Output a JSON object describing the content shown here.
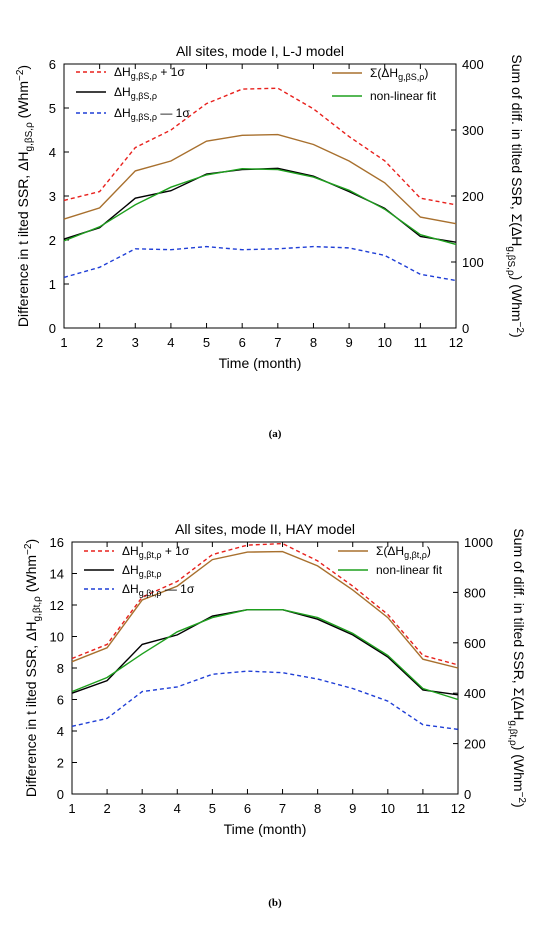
{
  "chart_data": [
    {
      "type": "line",
      "title": "All sites, mode I, L-J model",
      "caption": "(a)",
      "xlabel": "Time (month)",
      "ylabel_left": "Difference in t ilted SSR, ΔH",
      "ylabel_left_sub": "g,βS,ρ",
      "ylabel_left_unit": "(Whm",
      "ylabel_left_sup": "−2",
      "ylabel_left_close": ")",
      "ylabel_right_1": "Sum of diff. in tilted SSR,  Σ(ΔH",
      "ylabel_right_sub": "g,βS,ρ",
      "ylabel_right_unit": ") (Whm",
      "ylabel_right_sup": "−2",
      "ylabel_right_close": ")",
      "x": [
        1,
        2,
        3,
        4,
        5,
        6,
        7,
        8,
        9,
        10,
        11,
        12
      ],
      "xlim": [
        1,
        12
      ],
      "ylim_left": [
        0,
        6
      ],
      "ylim_right": [
        0,
        400
      ],
      "grid": false,
      "series": [
        {
          "name": "ΔH",
          "sub": "g,βS,ρ",
          "suffix": " + 1σ",
          "axis": "left",
          "color": "#e8201c",
          "dash": true,
          "values": [
            2.9,
            3.1,
            4.1,
            4.5,
            5.1,
            5.43,
            5.45,
            4.98,
            4.35,
            3.8,
            2.95,
            2.8
          ]
        },
        {
          "name": "ΔH",
          "sub": "g,βS,ρ",
          "suffix": "",
          "axis": "left",
          "color": "#000000",
          "dash": false,
          "values": [
            2.02,
            2.28,
            2.95,
            3.12,
            3.5,
            3.6,
            3.63,
            3.45,
            3.1,
            2.72,
            2.08,
            1.95
          ]
        },
        {
          "name": "ΔH",
          "sub": "g,βS,ρ",
          "suffix": " — 1σ",
          "axis": "left",
          "color": "#1f3ed6",
          "dash": true,
          "values": [
            1.15,
            1.38,
            1.8,
            1.78,
            1.85,
            1.78,
            1.8,
            1.85,
            1.82,
            1.65,
            1.22,
            1.08
          ]
        },
        {
          "name": "Σ(ΔH",
          "sub": "g,βS,ρ",
          "suffix": ")",
          "axis": "right",
          "color": "#a8702e",
          "dash": false,
          "values": [
            165,
            182,
            238,
            253,
            283,
            292,
            293,
            278,
            253,
            220,
            168,
            158
          ]
        },
        {
          "name": "non-linear fit",
          "sub": "",
          "suffix": "",
          "axis": "left",
          "color": "#1ea01e",
          "dash": false,
          "values": [
            1.98,
            2.3,
            2.8,
            3.2,
            3.48,
            3.62,
            3.6,
            3.43,
            3.13,
            2.7,
            2.12,
            1.9
          ]
        }
      ],
      "xticks": [
        "1",
        "2",
        "3",
        "4",
        "5",
        "6",
        "7",
        "8",
        "9",
        "10",
        "11",
        "12"
      ],
      "yticks_left": [
        "0",
        "1",
        "2",
        "3",
        "4",
        "5",
        "6"
      ],
      "yticks_right": [
        "0",
        "100",
        "200",
        "300",
        "400"
      ],
      "legend_placement": "top"
    },
    {
      "type": "line",
      "title": "All sites, mode II, HAY model",
      "caption": "(b)",
      "xlabel": "Time (month)",
      "ylabel_left": "Difference in t ilted SSR, ΔH",
      "ylabel_left_sub": "g,βt,ρ",
      "ylabel_left_unit": "(Whm",
      "ylabel_left_sup": "−2",
      "ylabel_left_close": ")",
      "ylabel_right_1": "Sum of diff. in tilted SSR,  Σ(ΔH",
      "ylabel_right_sub": "g,βt,ρ",
      "ylabel_right_unit": ") (Whm",
      "ylabel_right_sup": "−2",
      "ylabel_right_close": ")",
      "x": [
        1,
        2,
        3,
        4,
        5,
        6,
        7,
        8,
        9,
        10,
        11,
        12
      ],
      "xlim": [
        1,
        12
      ],
      "ylim_left": [
        0,
        16
      ],
      "ylim_right": [
        0,
        1000
      ],
      "grid": false,
      "series": [
        {
          "name": "ΔH",
          "sub": "g,βt,ρ",
          "suffix": " + 1σ",
          "axis": "left",
          "color": "#e8201c",
          "dash": true,
          "values": [
            8.6,
            9.5,
            12.5,
            13.5,
            15.2,
            15.8,
            15.9,
            14.8,
            13.2,
            11.4,
            8.8,
            8.2
          ]
        },
        {
          "name": "ΔH",
          "sub": "g,βt,ρ",
          "suffix": "",
          "axis": "left",
          "color": "#000000",
          "dash": false,
          "values": [
            6.4,
            7.2,
            9.5,
            10.1,
            11.3,
            11.7,
            11.7,
            11.1,
            10.1,
            8.7,
            6.6,
            6.3
          ]
        },
        {
          "name": "ΔH",
          "sub": "g,βt,ρ",
          "suffix": " — 1σ",
          "axis": "left",
          "color": "#1f3ed6",
          "dash": true,
          "values": [
            4.3,
            4.8,
            6.5,
            6.8,
            7.6,
            7.8,
            7.7,
            7.3,
            6.7,
            5.9,
            4.4,
            4.1
          ]
        },
        {
          "name": "Σ(ΔH",
          "sub": "g,βt,ρ",
          "suffix": ")",
          "axis": "right",
          "color": "#a8702e",
          "dash": false,
          "values": [
            525,
            580,
            770,
            825,
            930,
            960,
            962,
            905,
            810,
            700,
            535,
            500
          ]
        },
        {
          "name": "non-linear fit",
          "sub": "",
          "suffix": "",
          "axis": "left",
          "color": "#1ea01e",
          "dash": false,
          "values": [
            6.5,
            7.4,
            8.9,
            10.3,
            11.2,
            11.7,
            11.7,
            11.2,
            10.2,
            8.8,
            6.7,
            6.0
          ]
        }
      ],
      "xticks": [
        "1",
        "2",
        "3",
        "4",
        "5",
        "6",
        "7",
        "8",
        "9",
        "10",
        "11",
        "12"
      ],
      "yticks_left": [
        "0",
        "2",
        "4",
        "6",
        "8",
        "10",
        "12",
        "14",
        "16"
      ],
      "yticks_right": [
        "0",
        "200",
        "400",
        "600",
        "800",
        "1000"
      ],
      "legend_placement": "top"
    }
  ]
}
